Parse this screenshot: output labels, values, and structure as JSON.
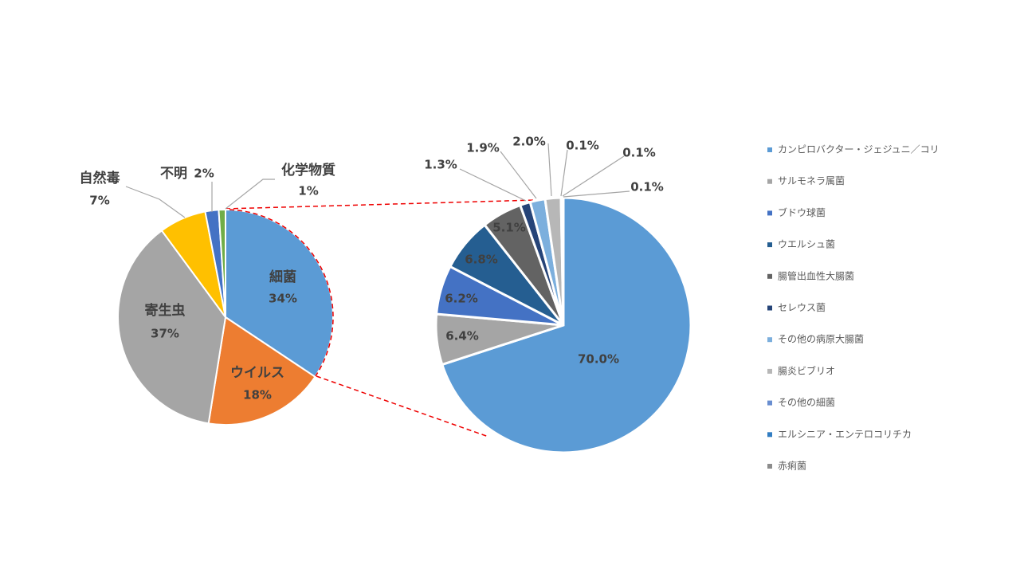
{
  "chart_data": [
    {
      "type": "pie",
      "categories": [
        "細菌",
        "ウイルス",
        "寄生虫",
        "自然毒",
        "不明",
        "化学物質"
      ],
      "values": [
        34,
        18,
        37,
        7,
        2,
        1
      ],
      "value_labels": [
        "34%",
        "18%",
        "37%",
        "7%",
        "2%",
        "1%"
      ],
      "colors": [
        "#5b9bd5",
        "#ed7d31",
        "#a5a5a5",
        "#ffc000",
        "#4472c4",
        "#70ad47"
      ]
    },
    {
      "type": "pie",
      "categories": [
        "カンピロバクター・ジェジュニ／コリ",
        "サルモネラ属菌",
        "ブドウ球菌",
        "ウエルシュ菌",
        "腸管出血性大腸菌",
        "セレウス菌",
        "その他の病原大腸菌",
        "腸炎ビブリオ",
        "その他の細菌",
        "エルシニア・エンテロコリチカ",
        "赤痢菌"
      ],
      "values": [
        70.0,
        6.4,
        6.2,
        6.8,
        5.1,
        1.3,
        1.9,
        2.0,
        0.1,
        0.1,
        0.1
      ],
      "value_labels": [
        "70.0%",
        "6.4%",
        "6.2%",
        "6.8%",
        "5.1%",
        "1.3%",
        "1.9%",
        "2.0%",
        "0.1%",
        "0.1%",
        "0.1%"
      ],
      "colors": [
        "#5b9bd5",
        "#a5a5a5",
        "#4472c4",
        "#255e91",
        "#636363",
        "#264478",
        "#7cafdd",
        "#b7b7b7",
        "#698ed0",
        "#327dc2",
        "#8c8c8c"
      ],
      "legend": "right"
    }
  ]
}
